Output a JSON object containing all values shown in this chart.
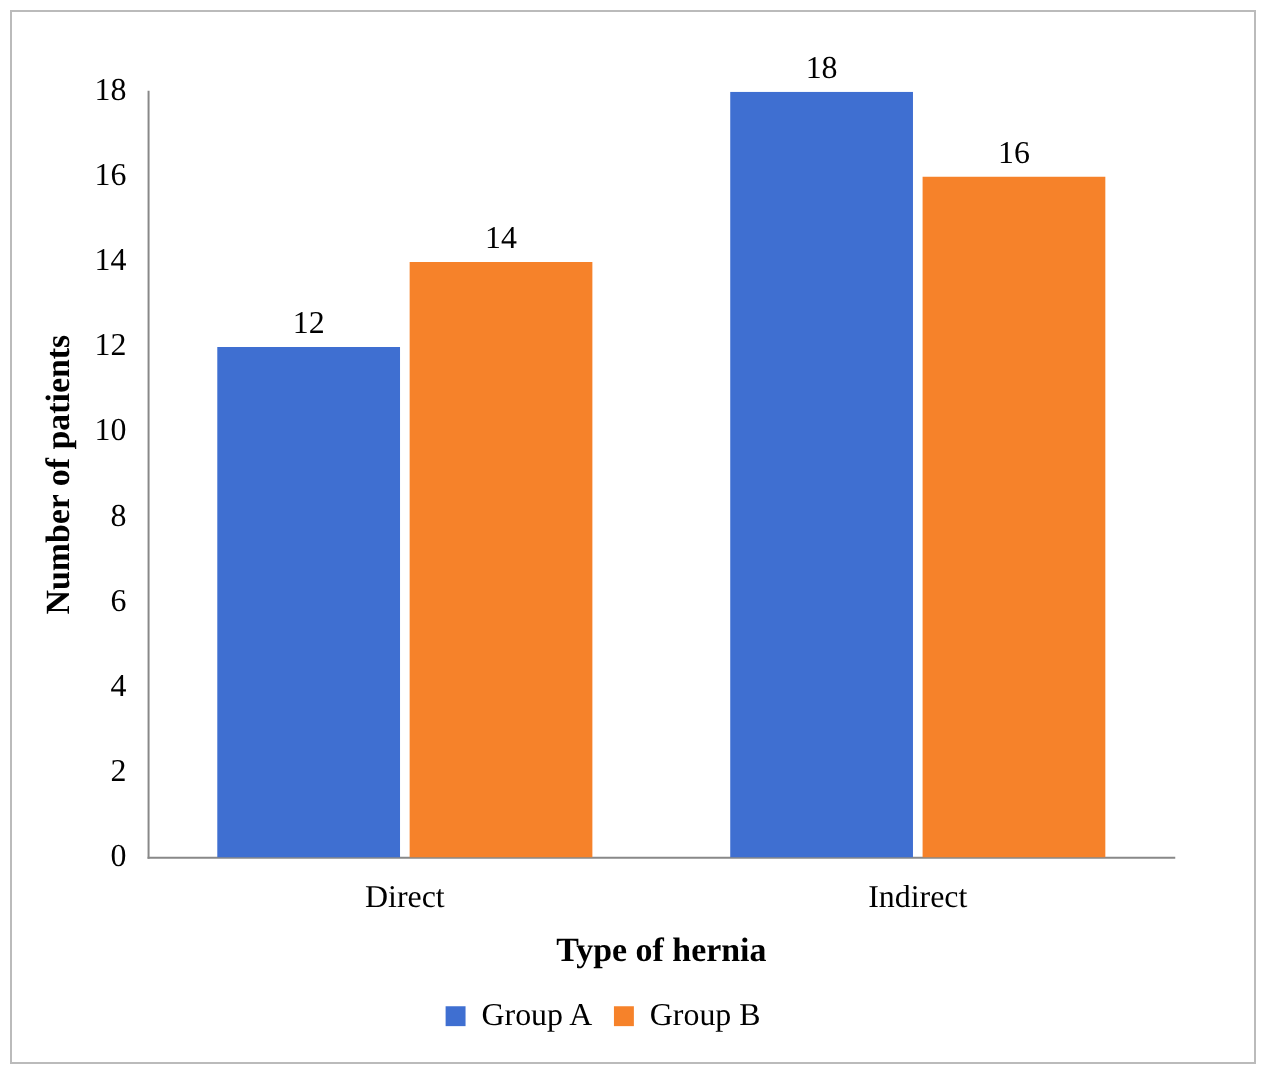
{
  "chart_data": {
    "type": "bar",
    "xlabel": "Type of hernia",
    "ylabel": "Number of patients",
    "categories": [
      "Direct",
      "Indirect"
    ],
    "series": [
      {
        "name": "Group A",
        "color": "#3f6fd1",
        "values": [
          12,
          18
        ]
      },
      {
        "name": "Group B",
        "color": "#f6822a",
        "values": [
          14,
          16
        ]
      }
    ],
    "ylim": [
      0,
      18
    ],
    "yticks": [
      0,
      2,
      4,
      6,
      8,
      10,
      12,
      14,
      16,
      18
    ],
    "grid": false,
    "legend": "bottom",
    "data_labels": true
  }
}
